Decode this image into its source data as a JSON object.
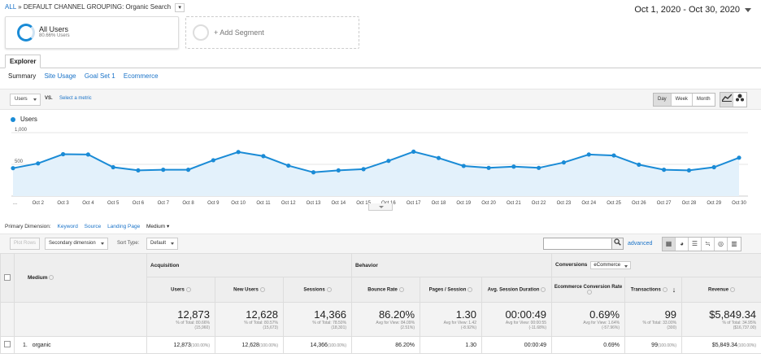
{
  "breadcrumb": {
    "root": "ALL",
    "sep": "»",
    "group": "DEFAULT CHANNEL GROUPING:",
    "value": "Organic Search"
  },
  "date_range": "Oct 1, 2020 - Oct 30, 2020",
  "segments": [
    {
      "name": "All Users",
      "sub": "80.66% Users"
    },
    {
      "name": "+ Add Segment"
    }
  ],
  "explorer_tab": "Explorer",
  "subtabs": {
    "active": "Summary",
    "tabs": [
      "Site Usage",
      "Goal Set 1",
      "Ecommerce"
    ]
  },
  "chart_toolbar": {
    "metric": "Users",
    "vs": "VS.",
    "select_metric": "Select a metric",
    "periods": [
      "Day",
      "Week",
      "Month"
    ],
    "active_period": "Day"
  },
  "legend": "Users",
  "chart_data": {
    "type": "area",
    "series": [
      {
        "name": "Users",
        "values": [
          440,
          515,
          660,
          655,
          455,
          405,
          415,
          415,
          565,
          695,
          630,
          480,
          375,
          405,
          425,
          555,
          700,
          600,
          475,
          445,
          465,
          445,
          530,
          655,
          640,
          495,
          415,
          405,
          455,
          605
        ]
      }
    ],
    "x": [
      "Oct 1",
      "Oct 2",
      "Oct 3",
      "Oct 4",
      "Oct 5",
      "Oct 6",
      "Oct 7",
      "Oct 8",
      "Oct 9",
      "Oct 10",
      "Oct 11",
      "Oct 12",
      "Oct 13",
      "Oct 14",
      "Oct 15",
      "Oct 16",
      "Oct 17",
      "Oct 18",
      "Oct 19",
      "Oct 20",
      "Oct 21",
      "Oct 22",
      "Oct 23",
      "Oct 24",
      "Oct 25",
      "Oct 26",
      "Oct 27",
      "Oct 28",
      "Oct 29",
      "Oct 30"
    ],
    "tick_labels": [
      "...",
      "Oct 2",
      "Oct 3",
      "Oct 4",
      "Oct 5",
      "Oct 6",
      "Oct 7",
      "Oct 8",
      "Oct 9",
      "Oct 10",
      "Oct 11",
      "Oct 12",
      "Oct 13",
      "Oct 14",
      "Oct 15",
      "Oct 16",
      "Oct 17",
      "Oct 18",
      "Oct 19",
      "Oct 20",
      "Oct 21",
      "Oct 22",
      "Oct 23",
      "Oct 24",
      "Oct 25",
      "Oct 26",
      "Oct 27",
      "Oct 28",
      "Oct 29",
      "Oct 30"
    ],
    "y_ticks": [
      {
        "value": 1000,
        "label": "1,000"
      },
      {
        "value": 500,
        "label": "500"
      }
    ],
    "ylim": [
      0,
      1000
    ],
    "grid": true,
    "line_color": "#1a8bd6",
    "fill_color": "#e3f1fb"
  },
  "primary_dimension": {
    "label": "Primary Dimension:",
    "options": [
      "Keyword",
      "Source",
      "Landing Page"
    ],
    "current": "Medium"
  },
  "table_toolbar": {
    "plot_rows": "Plot Rows",
    "secondary_dimension": "Secondary dimension",
    "sort_type_label": "Sort Type:",
    "sort_type": "Default",
    "advanced": "advanced"
  },
  "table": {
    "dimension_header": "Medium",
    "groups": {
      "acquisition": "Acquisition",
      "behavior": "Behavior",
      "conversions": "Conversions",
      "conversions_select": "eCommerce"
    },
    "columns": [
      "Users",
      "New Users",
      "Sessions",
      "Bounce Rate",
      "Pages / Session",
      "Avg. Session Duration",
      "Ecommerce Conversion Rate",
      "Transactions",
      "Revenue"
    ],
    "totals": [
      {
        "value": "12,873",
        "l1": "% of Total: 80.66%",
        "l2": "(15,960)"
      },
      {
        "value": "12,628",
        "l1": "% of Total: 80.57%",
        "l2": "(15,673)"
      },
      {
        "value": "14,366",
        "l1": "% of Total: 78.50%",
        "l2": "(18,301)"
      },
      {
        "value": "86.20%",
        "l1": "Avg for View: 84.09%",
        "l2": "(2.51%)"
      },
      {
        "value": "1.30",
        "l1": "Avg for View: 1.42",
        "l2": "(-8.92%)"
      },
      {
        "value": "00:00:49",
        "l1": "Avg for View: 00:00:55",
        "l2": "(-11.68%)"
      },
      {
        "value": "0.69%",
        "l1": "Avg for View: 1.64%",
        "l2": "(-57.96%)"
      },
      {
        "value": "99",
        "l1": "% of Total: 33.00%",
        "l2": "(300)"
      },
      {
        "value": "$5,849.34",
        "l1": "% of Total: 34.95%",
        "l2": "($16,737.00)"
      }
    ],
    "rows": [
      {
        "index": "1.",
        "medium": "organic",
        "cells": [
          {
            "v": "12,873",
            "p": "(100.00%)"
          },
          {
            "v": "12,628",
            "p": "(100.00%)"
          },
          {
            "v": "14,366",
            "p": "(100.00%)"
          },
          {
            "v": "86.20%",
            "p": ""
          },
          {
            "v": "1.30",
            "p": ""
          },
          {
            "v": "00:00:49",
            "p": ""
          },
          {
            "v": "0.69%",
            "p": ""
          },
          {
            "v": "99",
            "p": "(100.00%)"
          },
          {
            "v": "$5,849.34",
            "p": "(100.00%)"
          }
        ]
      }
    ]
  }
}
